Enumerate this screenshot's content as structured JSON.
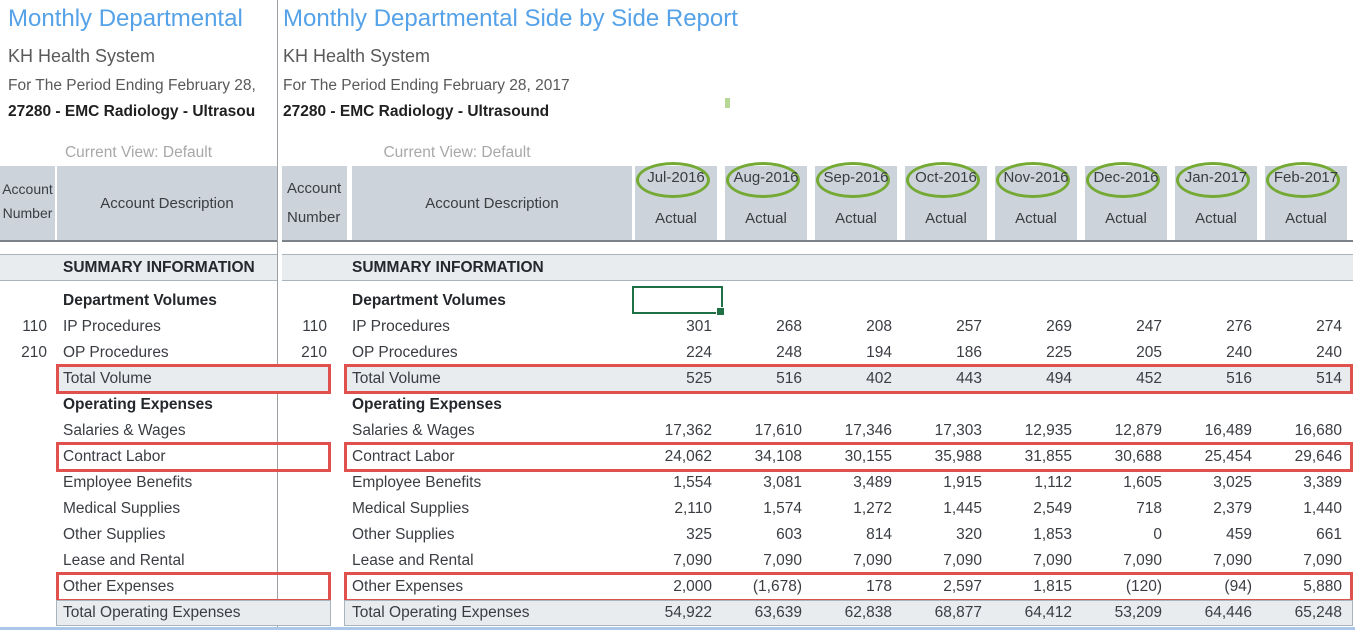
{
  "colors": {
    "blue": "#55a2e8",
    "hdr": "#ccd3da",
    "band": "#e8ecef",
    "bandline": "#a9b4bc",
    "red": "#e0504d",
    "green": "#74aa33",
    "selgreen": "#1f7145",
    "divider": "#9aa0a6",
    "muted": "#a8a8a8",
    "headerline": "#7b828a",
    "bottomline": "#abc8e8"
  },
  "left_pane": {
    "title": "Monthly Departmental",
    "org": "KH Health System",
    "period": "For The Period Ending February 28,",
    "dept": "27280 - EMC Radiology - Ultrasou",
    "view_label": "Current View: Default"
  },
  "right_pane": {
    "title": "Monthly Departmental Side by Side Report",
    "org": "KH Health System",
    "period": "For The Period Ending February 28, 2017",
    "dept": "27280 - EMC Radiology - Ultrasound",
    "view_label": "Current View: Default"
  },
  "table": {
    "account_number_header": "Account Number",
    "account_description_header": "Account Description",
    "columns": [
      {
        "month": "Jul-2016",
        "sub": "Actual",
        "circled": true
      },
      {
        "month": "Aug-2016",
        "sub": "Actual",
        "circled": true
      },
      {
        "month": "Sep-2016",
        "sub": "Actual",
        "circled": true
      },
      {
        "month": "Oct-2016",
        "sub": "Actual",
        "circled": true
      },
      {
        "month": "Nov-2016",
        "sub": "Actual",
        "circled": true
      },
      {
        "month": "Dec-2016",
        "sub": "Actual",
        "circled": true
      },
      {
        "month": "Jan-2017",
        "sub": "Actual",
        "circled": true
      },
      {
        "month": "Feb-2017",
        "sub": "Actual",
        "circled": true
      }
    ],
    "rows": [
      {
        "kind": "band",
        "label": "SUMMARY INFORMATION"
      },
      {
        "kind": "group",
        "label": "Department Volumes"
      },
      {
        "kind": "data",
        "account": "110",
        "label": "IP Procedures",
        "values": [
          "301",
          "268",
          "208",
          "257",
          "269",
          "247",
          "276",
          "274"
        ]
      },
      {
        "kind": "data",
        "account": "210",
        "label": "OP Procedures",
        "values": [
          "224",
          "248",
          "194",
          "186",
          "225",
          "205",
          "240",
          "240"
        ]
      },
      {
        "kind": "total_red",
        "label": "Total Volume",
        "values": [
          "525",
          "516",
          "402",
          "443",
          "494",
          "452",
          "516",
          "514"
        ]
      },
      {
        "kind": "group",
        "label": "Operating Expenses"
      },
      {
        "kind": "data",
        "label": "Salaries & Wages",
        "values": [
          "17,362",
          "17,610",
          "17,346",
          "17,303",
          "12,935",
          "12,879",
          "16,489",
          "16,680"
        ]
      },
      {
        "kind": "red",
        "label": "Contract Labor",
        "values": [
          "24,062",
          "34,108",
          "30,155",
          "35,988",
          "31,855",
          "30,688",
          "25,454",
          "29,646"
        ]
      },
      {
        "kind": "data",
        "label": "Employee Benefits",
        "values": [
          "1,554",
          "3,081",
          "3,489",
          "1,915",
          "1,112",
          "1,605",
          "3,025",
          "3,389"
        ]
      },
      {
        "kind": "data",
        "label": "Medical Supplies",
        "values": [
          "2,110",
          "1,574",
          "1,272",
          "1,445",
          "2,549",
          "718",
          "2,379",
          "1,440"
        ]
      },
      {
        "kind": "data",
        "label": "Other Supplies",
        "values": [
          "325",
          "603",
          "814",
          "320",
          "1,853",
          "0",
          "459",
          "661"
        ]
      },
      {
        "kind": "data",
        "label": "Lease and Rental",
        "values": [
          "7,090",
          "7,090",
          "7,090",
          "7,090",
          "7,090",
          "7,090",
          "7,090",
          "7,090"
        ]
      },
      {
        "kind": "red",
        "label": "Other Expenses",
        "values": [
          "2,000",
          "(1,678)",
          "178",
          "2,597",
          "1,815",
          "(120)",
          "(94)",
          "5,880"
        ]
      },
      {
        "kind": "total",
        "label": "Total Operating Expenses",
        "values": [
          "54,922",
          "63,639",
          "62,838",
          "68,877",
          "64,412",
          "53,209",
          "64,446",
          "65,248"
        ]
      }
    ],
    "selected_cell": {
      "row": "Department Volumes",
      "column": "Jul-2016",
      "value": ""
    }
  }
}
